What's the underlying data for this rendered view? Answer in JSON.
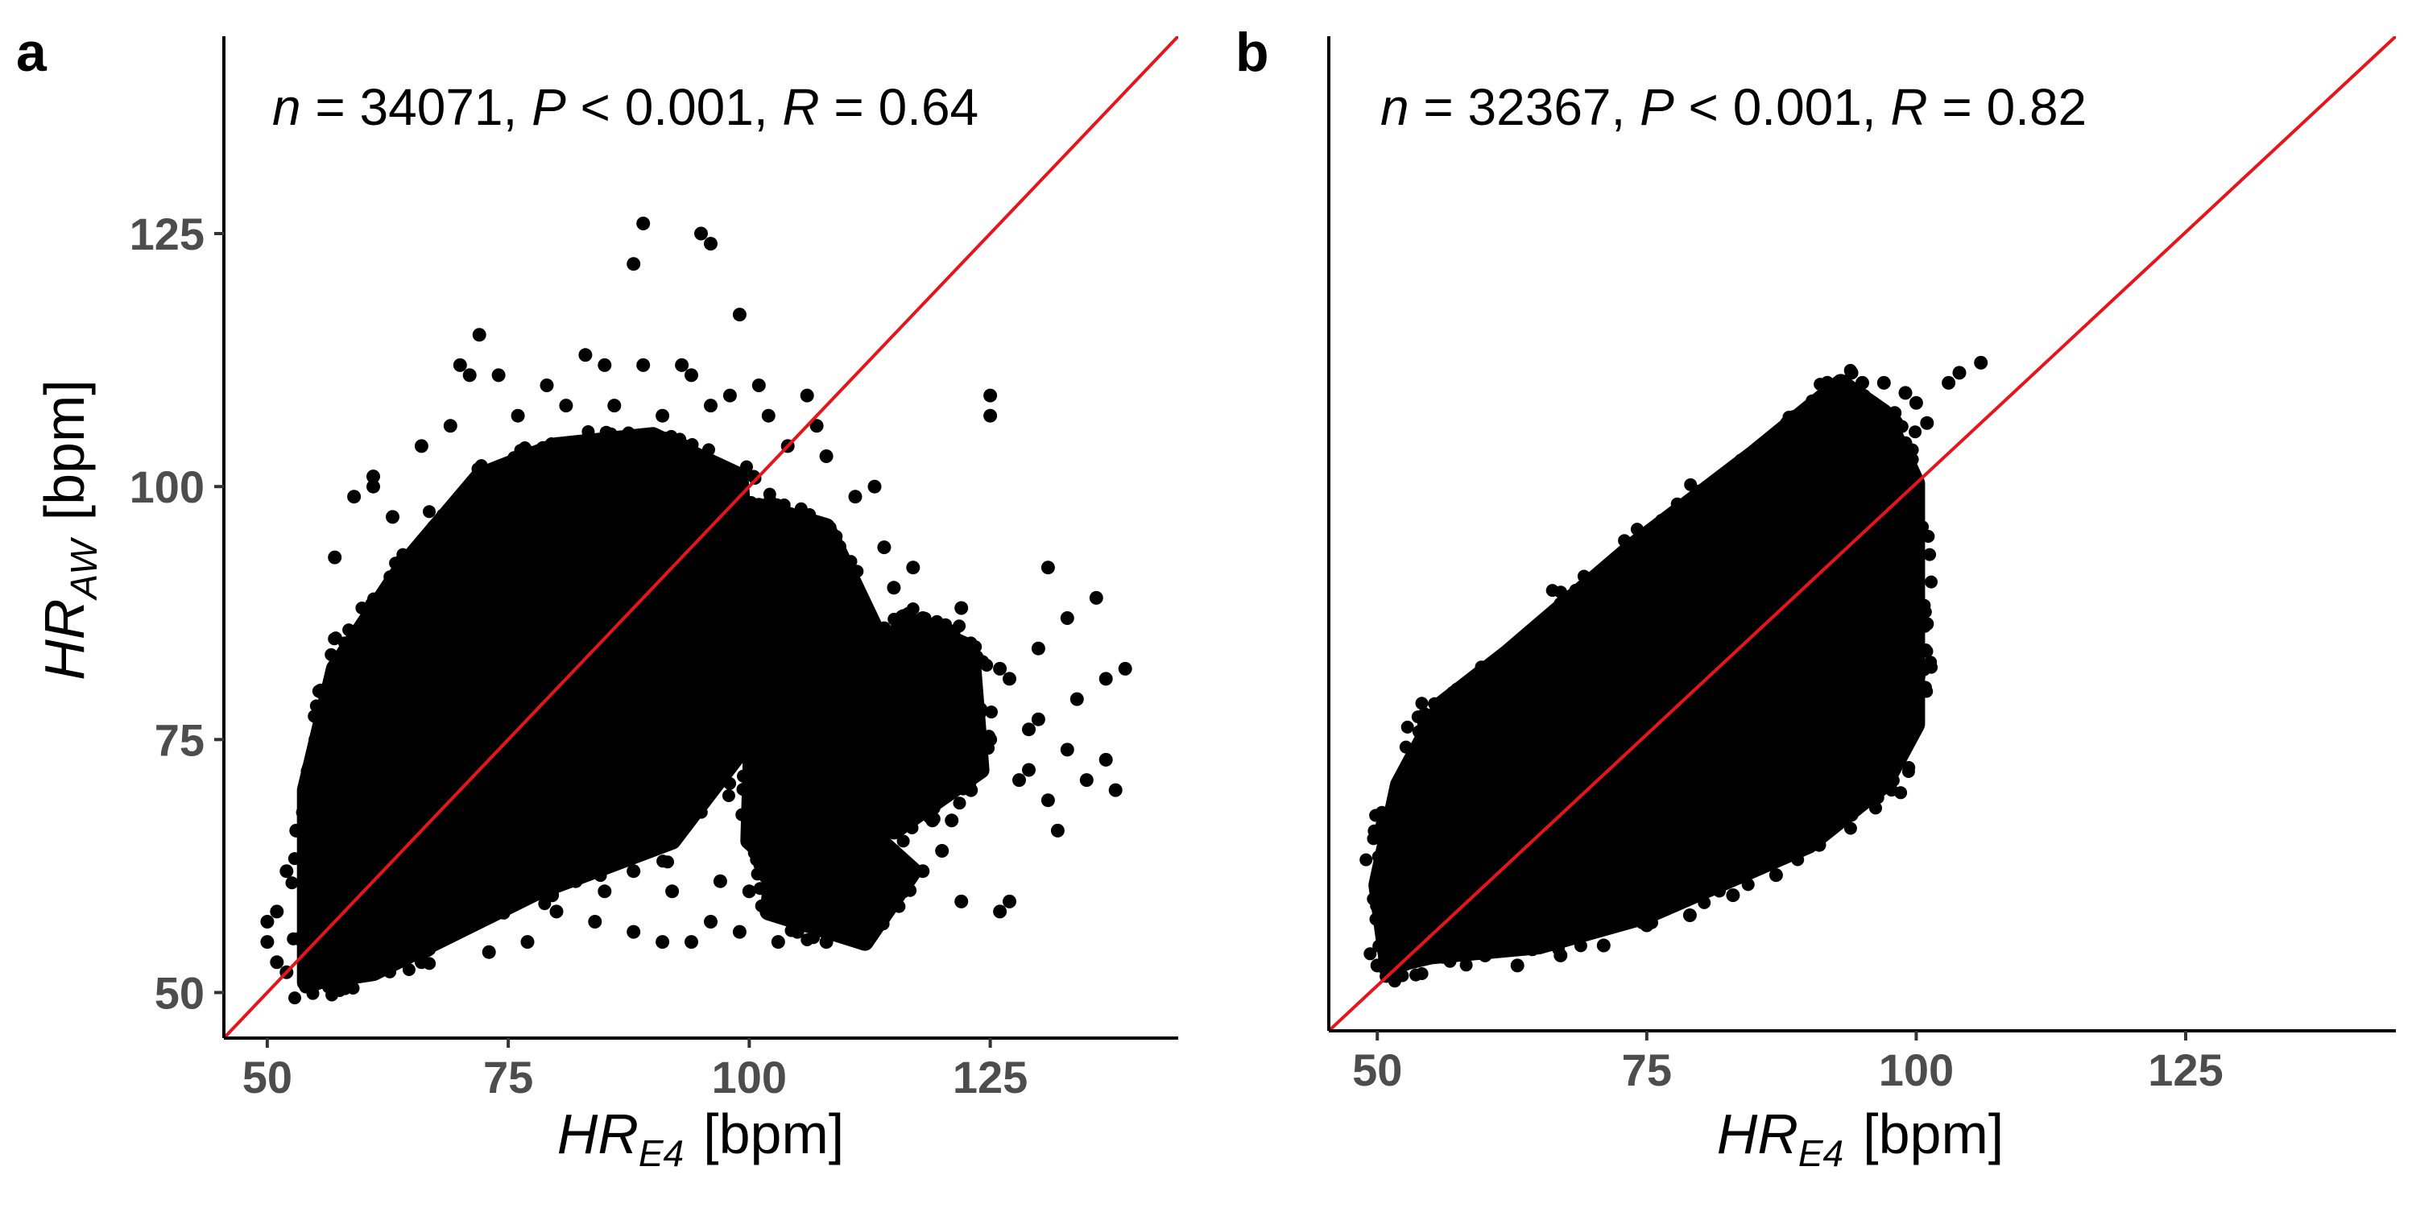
{
  "chart_data": [
    {
      "type": "scatter",
      "panel_label": "a",
      "stats": {
        "n": "34071",
        "p": "0.001",
        "r": "0.64"
      },
      "xlabel": {
        "main": "HR",
        "sub": "E4",
        "unit": "[bpm]"
      },
      "ylabel": {
        "main": "HR",
        "sub": "AW",
        "unit": "[bpm]"
      },
      "xlim": [
        45.5,
        144.5
      ],
      "ylim": [
        45.5,
        144.5
      ],
      "xticks": [
        50,
        75,
        100,
        125
      ],
      "yticks": [
        50,
        75,
        100,
        125
      ],
      "show_yaxis_labels": true,
      "reference_line": {
        "type": "identity",
        "color": "#e8141c"
      },
      "point_color": "#000000",
      "core_polygon": [
        [
          54,
          51
        ],
        [
          61,
          52
        ],
        [
          78,
          60
        ],
        [
          92,
          65
        ],
        [
          100,
          75
        ],
        [
          100,
          88
        ],
        [
          99,
          101
        ],
        [
          90,
          105
        ],
        [
          80,
          104
        ],
        [
          72,
          101
        ],
        [
          64,
          92
        ],
        [
          57,
          82
        ],
        [
          54,
          70
        ]
      ],
      "extra_clusters": [
        {
          "polygon": [
            [
              100,
              65
            ],
            [
              106,
              60
            ],
            [
              114,
              68
            ],
            [
              114,
              84
            ],
            [
              108,
              96
            ],
            [
              101,
              98
            ]
          ]
        },
        {
          "polygon": [
            [
              102,
              58
            ],
            [
              112,
              55
            ],
            [
              117,
              62
            ],
            [
              110,
              68
            ],
            [
              103,
              66
            ]
          ]
        },
        {
          "polygon": [
            [
              115,
              66
            ],
            [
              124,
              72
            ],
            [
              123,
              84
            ],
            [
              116,
              87
            ],
            [
              112,
              78
            ]
          ]
        },
        {
          "polygon": [
            [
              59,
              60
            ],
            [
              64,
              58
            ],
            [
              66,
              75
            ],
            [
              62,
              88
            ],
            [
              58,
              79
            ]
          ]
        }
      ],
      "outliers": [
        [
          89,
          126
        ],
        [
          88,
          122
        ],
        [
          95,
          125
        ],
        [
          96,
          124
        ],
        [
          99,
          117
        ],
        [
          72,
          115
        ],
        [
          70,
          112
        ],
        [
          71,
          111
        ],
        [
          74,
          111
        ],
        [
          79,
          110
        ],
        [
          83,
          113
        ],
        [
          85,
          112
        ],
        [
          89,
          112
        ],
        [
          93,
          112
        ],
        [
          94,
          111
        ],
        [
          98,
          109
        ],
        [
          101,
          110
        ],
        [
          106,
          109
        ],
        [
          107,
          106
        ],
        [
          125,
          109
        ],
        [
          125,
          107
        ],
        [
          131,
          92
        ],
        [
          136,
          89
        ],
        [
          133,
          87
        ],
        [
          139,
          82
        ],
        [
          137,
          81
        ],
        [
          134,
          79
        ],
        [
          137,
          73
        ],
        [
          138,
          70
        ],
        [
          131,
          69
        ],
        [
          129,
          72
        ],
        [
          132,
          66
        ],
        [
          126,
          58
        ],
        [
          127,
          59
        ],
        [
          122,
          59
        ],
        [
          119,
          67
        ],
        [
          120,
          64
        ],
        [
          111,
          99
        ],
        [
          114,
          94
        ],
        [
          110,
          92
        ],
        [
          107,
          90
        ],
        [
          118,
          87
        ],
        [
          121,
          85
        ],
        [
          116,
          78
        ],
        [
          119,
          80
        ],
        [
          127,
          81
        ],
        [
          125,
          75
        ],
        [
          129,
          76
        ],
        [
          128,
          71
        ],
        [
          123,
          70
        ],
        [
          121,
          73
        ],
        [
          111,
          56
        ],
        [
          110,
          58
        ],
        [
          108,
          55
        ],
        [
          105,
          56
        ],
        [
          103,
          55
        ],
        [
          99,
          56
        ],
        [
          96,
          57
        ],
        [
          94,
          55
        ],
        [
          91,
          55
        ],
        [
          88,
          56
        ],
        [
          84,
          57
        ],
        [
          80,
          58
        ],
        [
          77,
          55
        ],
        [
          73,
          54
        ],
        [
          69,
          56
        ],
        [
          66,
          53
        ],
        [
          62,
          53
        ],
        [
          60,
          55
        ],
        [
          61,
          101
        ],
        [
          61,
          100
        ],
        [
          63,
          97
        ],
        [
          59,
          99
        ],
        [
          57,
          93
        ],
        [
          55,
          75
        ],
        [
          54,
          70
        ],
        [
          53,
          66
        ],
        [
          52,
          62
        ],
        [
          51,
          58
        ],
        [
          50,
          57
        ],
        [
          50,
          55
        ],
        [
          51,
          53
        ],
        [
          52,
          52
        ],
        [
          115,
          90
        ],
        [
          113,
          100
        ],
        [
          108,
          103
        ],
        [
          118,
          62
        ],
        [
          116,
          60
        ],
        [
          115,
          64
        ],
        [
          112,
          61
        ],
        [
          124,
          78
        ],
        [
          126,
          82
        ],
        [
          130,
          77
        ],
        [
          133,
          74
        ],
        [
          135,
          71
        ],
        [
          130,
          84
        ],
        [
          122,
          88
        ],
        [
          117,
          92
        ],
        [
          114,
          86
        ],
        [
          112,
          82
        ],
        [
          110,
          76
        ],
        [
          113,
          72
        ],
        [
          118,
          70
        ],
        [
          121,
          67
        ],
        [
          105,
          62
        ],
        [
          107,
          64
        ],
        [
          100,
          60
        ],
        [
          97,
          61
        ],
        [
          92,
          60
        ],
        [
          88,
          62
        ],
        [
          85,
          60
        ],
        [
          82,
          61
        ],
        [
          66,
          104
        ],
        [
          69,
          106
        ],
        [
          76,
          107
        ],
        [
          81,
          108
        ],
        [
          86,
          108
        ],
        [
          91,
          107
        ],
        [
          96,
          108
        ],
        [
          102,
          107
        ],
        [
          104,
          104
        ]
      ]
    },
    {
      "type": "scatter",
      "panel_label": "b",
      "stats": {
        "n": "32367",
        "p": "0.001",
        "r": "0.82"
      },
      "xlabel": {
        "main": "HR",
        "sub": "E4",
        "unit": "[bpm]"
      },
      "ylabel": null,
      "xlim": [
        45.5,
        144.5
      ],
      "ylim": [
        45.5,
        144.5
      ],
      "xticks": [
        50,
        75,
        100,
        125
      ],
      "yticks": [],
      "show_yaxis_labels": false,
      "reference_line": {
        "type": "identity",
        "color": "#e8141c"
      },
      "point_color": "#000000",
      "core_polygon": [
        [
          51,
          52
        ],
        [
          55,
          53
        ],
        [
          65,
          54
        ],
        [
          75,
          57
        ],
        [
          90,
          64
        ],
        [
          97,
          70
        ],
        [
          100,
          76
        ],
        [
          100,
          85
        ],
        [
          100,
          100
        ],
        [
          97,
          107
        ],
        [
          93,
          110
        ],
        [
          85,
          103
        ],
        [
          74,
          94
        ],
        [
          62,
          83
        ],
        [
          56,
          78
        ],
        [
          52,
          70
        ],
        [
          50,
          60
        ]
      ],
      "extra_clusters": [],
      "outliers": [
        [
          51,
          51
        ],
        [
          50,
          52
        ],
        [
          52,
          54
        ],
        [
          53,
          57
        ],
        [
          54,
          59
        ],
        [
          55,
          62
        ],
        [
          55,
          68
        ],
        [
          56,
          73
        ],
        [
          57,
          76
        ],
        [
          58,
          79
        ],
        [
          60,
          81
        ],
        [
          63,
          84
        ],
        [
          67,
          88
        ],
        [
          71,
          91
        ],
        [
          75,
          95
        ],
        [
          79,
          98
        ],
        [
          83,
          101
        ],
        [
          86,
          103
        ],
        [
          88,
          106
        ],
        [
          91,
          108
        ],
        [
          93,
          109
        ],
        [
          95,
          110
        ],
        [
          97,
          110
        ],
        [
          99,
          109
        ],
        [
          100,
          108
        ],
        [
          101,
          106
        ],
        [
          104,
          111
        ],
        [
          106,
          112
        ],
        [
          103,
          110
        ],
        [
          99,
          104
        ],
        [
          100,
          98
        ],
        [
          100,
          92
        ],
        [
          101,
          86
        ],
        [
          100,
          80
        ],
        [
          99,
          75
        ],
        [
          97,
          71
        ],
        [
          94,
          67
        ],
        [
          91,
          64
        ],
        [
          87,
          61
        ],
        [
          83,
          59
        ],
        [
          79,
          57
        ],
        [
          75,
          56
        ],
        [
          71,
          54
        ],
        [
          67,
          53
        ],
        [
          63,
          52
        ],
        [
          60,
          53
        ],
        [
          57,
          54
        ],
        [
          94,
          111
        ],
        [
          96,
          108
        ],
        [
          98,
          107
        ]
      ]
    }
  ]
}
